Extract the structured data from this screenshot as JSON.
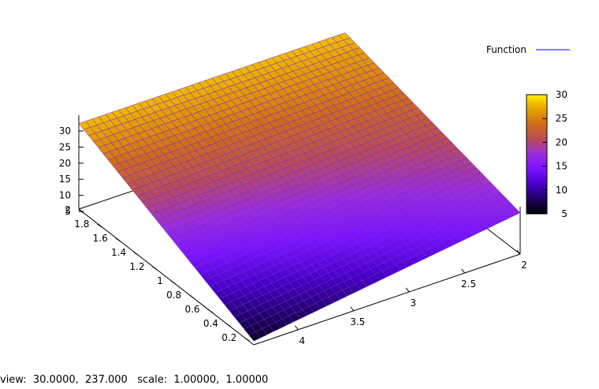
{
  "chart_data": {
    "type": "surface",
    "title": "",
    "legend": {
      "entries": [
        {
          "name": "Function",
          "color": "#0000ff"
        }
      ],
      "placement": "top-right"
    },
    "x_axis": {
      "ticks": [
        "0.2",
        "0.4",
        "0.6",
        "0.8",
        "1",
        "1.2",
        "1.4",
        "1.6",
        "1.8",
        "2"
      ],
      "range": [
        0.1,
        2
      ]
    },
    "y_axis": {
      "ticks": [
        "2",
        "2.5",
        "3",
        "3.5",
        "4"
      ],
      "range": [
        2,
        4.4
      ]
    },
    "z_axis": {
      "ticks": [
        "5",
        "10",
        "15",
        "20",
        "25",
        "30"
      ],
      "range": [
        5,
        30
      ]
    },
    "corner_values": [
      {
        "x": 0.1,
        "y": 4.4,
        "z": 6
      },
      {
        "x": 2,
        "y": 4.4,
        "z": 28
      },
      {
        "x": 0.1,
        "y": 2,
        "z": 16
      },
      {
        "x": 2,
        "y": 2,
        "z": 28
      }
    ],
    "colorbox": {
      "ticks": [
        "5",
        "10",
        "15",
        "20",
        "25",
        "30"
      ],
      "range": [
        5,
        30
      ]
    },
    "palette": [
      "#000000",
      "#1f0062",
      "#4800c8",
      "#7a12ff",
      "#9c2cdc",
      "#b84b5a",
      "#d06b1a",
      "#e9a000",
      "#ffee00"
    ],
    "grid": false
  },
  "status_bar": {
    "view_label": "view:",
    "view_values": "30.0000,  237.000",
    "scale_label": "scale:",
    "scale_values": "1.00000,  1.00000"
  }
}
